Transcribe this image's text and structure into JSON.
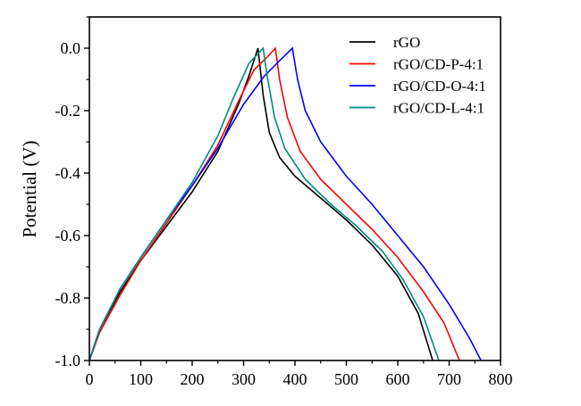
{
  "chart_data": {
    "type": "line",
    "title": "",
    "xlabel": "",
    "ylabel": "Potential (V)",
    "xlim": [
      0,
      800
    ],
    "ylim": [
      -1.0,
      0.1
    ],
    "xticks": [
      0,
      100,
      200,
      300,
      400,
      500,
      600,
      700,
      800
    ],
    "yticks": [
      0.0,
      -0.2,
      -0.4,
      -0.6,
      -0.8,
      -1.0
    ],
    "xtick_labels": [
      "0",
      "100",
      "200",
      "300",
      "400",
      "500",
      "600",
      "700",
      "800"
    ],
    "ytick_labels": [
      "0.0",
      "-0.2",
      "-0.4",
      "-0.6",
      "-0.8",
      "-1.0"
    ],
    "grid": false,
    "legend_position": "top-right",
    "series": [
      {
        "name": "rGO",
        "color": "#000000",
        "x": [
          0,
          20,
          60,
          100,
          150,
          200,
          250,
          290,
          310,
          328,
          338,
          350,
          370,
          400,
          450,
          500,
          550,
          600,
          640,
          668
        ],
        "y": [
          -1,
          -0.9,
          -0.78,
          -0.68,
          -0.57,
          -0.46,
          -0.33,
          -0.18,
          -0.09,
          0,
          -0.15,
          -0.27,
          -0.35,
          -0.41,
          -0.48,
          -0.55,
          -0.63,
          -0.73,
          -0.85,
          -1
        ]
      },
      {
        "name": "rGO/CD-P-4:1",
        "color": "#ff0000",
        "x": [
          0,
          20,
          60,
          100,
          150,
          200,
          250,
          290,
          320,
          345,
          362,
          370,
          385,
          410,
          450,
          500,
          550,
          600,
          650,
          690,
          720
        ],
        "y": [
          -1,
          -0.91,
          -0.79,
          -0.68,
          -0.56,
          -0.44,
          -0.31,
          -0.17,
          -0.07,
          -0.03,
          0,
          -0.1,
          -0.22,
          -0.33,
          -0.42,
          -0.5,
          -0.58,
          -0.67,
          -0.78,
          -0.88,
          -1
        ]
      },
      {
        "name": "rGO/CD-O-4:1",
        "color": "#0000ff",
        "x": [
          0,
          20,
          60,
          100,
          150,
          200,
          250,
          300,
          340,
          370,
          395,
          405,
          420,
          450,
          500,
          550,
          600,
          650,
          700,
          740,
          762
        ],
        "y": [
          -1,
          -0.9,
          -0.77,
          -0.67,
          -0.55,
          -0.44,
          -0.32,
          -0.18,
          -0.09,
          -0.04,
          0,
          -0.1,
          -0.2,
          -0.3,
          -0.41,
          -0.5,
          -0.6,
          -0.7,
          -0.82,
          -0.93,
          -1
        ]
      },
      {
        "name": "rGO/CD-L-4:1",
        "color": "#008b80",
        "x": [
          0,
          20,
          60,
          100,
          150,
          200,
          250,
          280,
          310,
          338,
          345,
          360,
          380,
          420,
          470,
          520,
          570,
          610,
          650,
          680
        ],
        "y": [
          -1,
          -0.9,
          -0.77,
          -0.67,
          -0.55,
          -0.43,
          -0.28,
          -0.16,
          -0.05,
          0,
          -0.08,
          -0.22,
          -0.32,
          -0.42,
          -0.5,
          -0.57,
          -0.65,
          -0.74,
          -0.86,
          -1
        ]
      }
    ]
  }
}
